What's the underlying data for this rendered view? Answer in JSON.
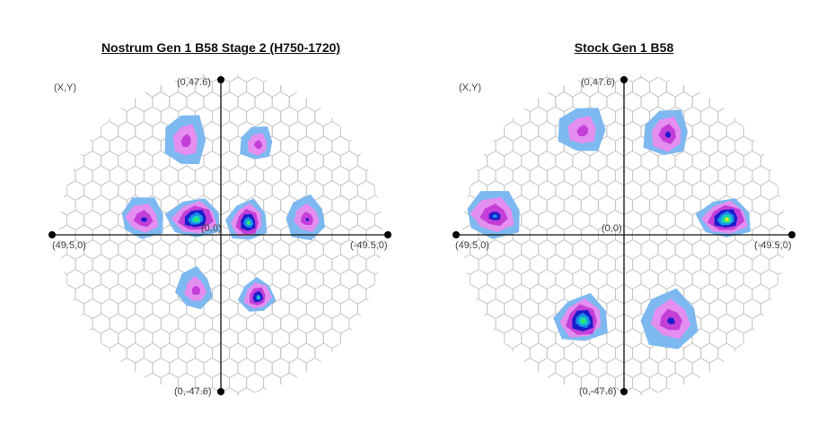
{
  "chart_data": [
    {
      "type": "heatmap",
      "subtype": "hexagonal-polar-map",
      "title": "Nostrum Gen 1 B58 Stage 2 (H750-1720)",
      "corner_label": "(X,Y)",
      "axis_labels": {
        "top": "(0,47.6)",
        "bottom": "(0,-47.6)",
        "left": "(49.5,0)",
        "right": "(-49.5,0)",
        "origin": "(0,0)"
      },
      "xlim": [
        -49.5,
        49.5
      ],
      "ylim": [
        -47.6,
        47.6
      ],
      "x_reversed": true,
      "grid": true,
      "hotspots": [
        {
          "x": 11,
          "y": 28,
          "rx": 5,
          "ry": 7,
          "peak": 0.45
        },
        {
          "x": -11,
          "y": 27,
          "rx": 4,
          "ry": 4,
          "peak": 0.45
        },
        {
          "x": 24,
          "y": 5,
          "rx": 6,
          "ry": 5,
          "peak": 0.55
        },
        {
          "x": 8,
          "y": 5,
          "rx": 7,
          "ry": 5,
          "peak": 0.85
        },
        {
          "x": -8,
          "y": 4,
          "rx": 5,
          "ry": 5,
          "peak": 0.8
        },
        {
          "x": -26,
          "y": 5,
          "rx": 5,
          "ry": 5,
          "peak": 0.5
        },
        {
          "x": 8,
          "y": -16,
          "rx": 4,
          "ry": 5,
          "peak": 0.45
        },
        {
          "x": -11,
          "y": -18,
          "rx": 4,
          "ry": 4,
          "peak": 0.7
        }
      ]
    },
    {
      "type": "heatmap",
      "subtype": "hexagonal-polar-map",
      "title": "Stock Gen 1 B58",
      "corner_label": "(X,Y)",
      "axis_labels": {
        "top": "(0,47.6)",
        "bottom": "(0,-47.6)",
        "left": "(49.5,0)",
        "right": "(-49.5,0)",
        "origin": "(0,0)"
      },
      "xlim": [
        -49.5,
        49.5
      ],
      "ylim": [
        -47.6,
        47.6
      ],
      "x_reversed": true,
      "grid": true,
      "hotspots": [
        {
          "x": 13,
          "y": 31,
          "rx": 6,
          "ry": 6,
          "peak": 0.45
        },
        {
          "x": -13,
          "y": 30,
          "rx": 6,
          "ry": 6,
          "peak": 0.55
        },
        {
          "x": 40,
          "y": 6,
          "rx": 8,
          "ry": 6,
          "peak": 0.6
        },
        {
          "x": -31,
          "y": 5,
          "rx": 7,
          "ry": 5,
          "peak": 0.9
        },
        {
          "x": 13,
          "y": -25,
          "rx": 7,
          "ry": 6,
          "peak": 0.85
        },
        {
          "x": -14,
          "y": -25,
          "rx": 8,
          "ry": 7,
          "peak": 0.55
        }
      ]
    }
  ]
}
